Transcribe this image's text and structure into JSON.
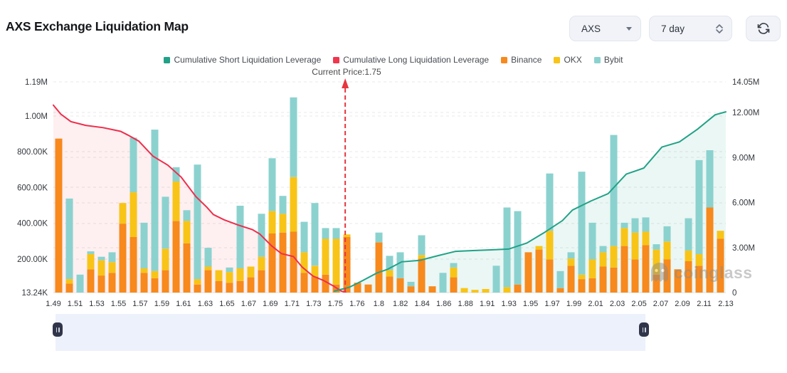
{
  "header": {
    "title": "AXS Exchange Liquidation Map",
    "coin_select": {
      "value": "AXS"
    },
    "range_select": {
      "value": "7 day"
    }
  },
  "icons": {
    "coin_select": "chevron-down-icon",
    "range_select": "spinner-chevrons-icon",
    "refresh": "refresh-icon",
    "slider_handles": "pause-icon",
    "watermark": "ghost-logo-icon"
  },
  "legend": [
    {
      "label": "Cumulative Short Liquidation Leverage",
      "color": "#21A287"
    },
    {
      "label": "Cumulative Long Liquidation Leverage",
      "color": "#F0374E"
    },
    {
      "label": "Binance",
      "color": "#F7891D"
    },
    {
      "label": "OKX",
      "color": "#F8C417"
    },
    {
      "label": "Bybit",
      "color": "#8BD2CF"
    }
  ],
  "watermark": {
    "text": "coinglass"
  },
  "chart_data": {
    "type": "bar",
    "title": "AXS Exchange Liquidation Map",
    "x_labels": [
      "1.49",
      "1.51",
      "1.53",
      "1.55",
      "1.57",
      "1.59",
      "1.61",
      "1.63",
      "1.65",
      "1.67",
      "1.69",
      "1.71",
      "1.73",
      "1.75",
      "1.76",
      "1.8",
      "1.82",
      "1.84",
      "1.86",
      "1.88",
      "1.91",
      "1.93",
      "1.95",
      "1.97",
      "1.99",
      "2.01",
      "2.03",
      "2.05",
      "2.07",
      "2.09",
      "2.11",
      "2.13"
    ],
    "left_axis": {
      "ticks": [
        "13.24K",
        "200.00K",
        "400.00K",
        "600.00K",
        "800.00K",
        "1.00M",
        "1.19M"
      ],
      "tick_values_k": [
        13.24,
        200,
        400,
        600,
        800,
        1000,
        1190
      ],
      "min_k": 13.24,
      "max_k": 1190
    },
    "right_axis": {
      "ticks": [
        "0",
        "3.00M",
        "6.00M",
        "9.00M",
        "12.00M",
        "14.05M"
      ],
      "tick_values_m": [
        0,
        3,
        6,
        9,
        12,
        14.05
      ],
      "min_m": 0,
      "max_m": 14.05
    },
    "grid": "dashed",
    "bars": {
      "unit": "K",
      "series_names": [
        "Binance",
        "OKX",
        "Bybit"
      ],
      "colors": {
        "Binance": "#F7891D",
        "OKX": "#F8C417",
        "Bybit": "#8BD2CF"
      },
      "values": [
        [
          860,
          0,
          0
        ],
        [
          50,
          25,
          450
        ],
        [
          0,
          0,
          100
        ],
        [
          130,
          85,
          15
        ],
        [
          95,
          85,
          20
        ],
        [
          110,
          60,
          55
        ],
        [
          385,
          115,
          0
        ],
        [
          310,
          250,
          305
        ],
        [
          110,
          25,
          255
        ],
        [
          80,
          40,
          790
        ],
        [
          125,
          120,
          290
        ],
        [
          400,
          220,
          80
        ],
        [
          275,
          125,
          60
        ],
        [
          45,
          30,
          640
        ],
        [
          125,
          20,
          105
        ],
        [
          65,
          60,
          0
        ],
        [
          55,
          60,
          25
        ],
        [
          65,
          70,
          350
        ],
        [
          85,
          60,
          0
        ],
        [
          125,
          75,
          240
        ],
        [
          330,
          125,
          295
        ],
        [
          335,
          105,
          100
        ],
        [
          340,
          305,
          445
        ],
        [
          110,
          115,
          170
        ],
        [
          90,
          60,
          350
        ],
        [
          100,
          200,
          60
        ],
        [
          45,
          255,
          60
        ],
        [
          310,
          15,
          0
        ],
        [
          55,
          0,
          0
        ],
        [
          45,
          0,
          0
        ],
        [
          280,
          0,
          55
        ],
        [
          90,
          35,
          80
        ],
        [
          80,
          0,
          145
        ],
        [
          35,
          0,
          25
        ],
        [
          190,
          20,
          110
        ],
        [
          35,
          0,
          0
        ],
        [
          0,
          0,
          110
        ],
        [
          85,
          55,
          25
        ],
        [
          0,
          25,
          0
        ],
        [
          0,
          15,
          0
        ],
        [
          0,
          20,
          0
        ],
        [
          0,
          0,
          150
        ],
        [
          0,
          30,
          445
        ],
        [
          45,
          0,
          410
        ],
        [
          225,
          0,
          0
        ],
        [
          240,
          20,
          0
        ],
        [
          185,
          160,
          320
        ],
        [
          25,
          0,
          95
        ],
        [
          150,
          40,
          35
        ],
        [
          75,
          25,
          575
        ],
        [
          80,
          105,
          205
        ],
        [
          145,
          80,
          35
        ],
        [
          140,
          120,
          620
        ],
        [
          260,
          100,
          30
        ],
        [
          185,
          150,
          80
        ],
        [
          265,
          75,
          80
        ],
        [
          100,
          140,
          30
        ],
        [
          185,
          100,
          85
        ],
        [
          130,
          0,
          0
        ],
        [
          175,
          60,
          180
        ],
        [
          150,
          65,
          525
        ],
        [
          475,
          0,
          320
        ],
        [
          300,
          45,
          0
        ]
      ]
    },
    "lines": [
      {
        "name": "Cumulative Long Liquidation Leverage",
        "unit": "M",
        "color": "#EE2E4C",
        "fill": "rgba(238,46,76,0.08)",
        "points": [
          [
            0.0,
            12.5
          ],
          [
            0.011,
            11.9
          ],
          [
            0.026,
            11.4
          ],
          [
            0.048,
            11.15
          ],
          [
            0.074,
            11.0
          ],
          [
            0.1,
            10.75
          ],
          [
            0.111,
            10.5
          ],
          [
            0.127,
            10.1
          ],
          [
            0.148,
            9.1
          ],
          [
            0.17,
            8.5
          ],
          [
            0.19,
            7.7
          ],
          [
            0.212,
            6.4
          ],
          [
            0.228,
            5.7
          ],
          [
            0.238,
            5.2
          ],
          [
            0.254,
            4.85
          ],
          [
            0.275,
            4.5
          ],
          [
            0.296,
            4.2
          ],
          [
            0.307,
            3.9
          ],
          [
            0.325,
            3.1
          ],
          [
            0.339,
            2.6
          ],
          [
            0.357,
            2.4
          ],
          [
            0.37,
            1.7
          ],
          [
            0.386,
            1.1
          ],
          [
            0.402,
            0.8
          ],
          [
            0.416,
            0.45
          ],
          [
            0.428,
            0.1
          ],
          [
            0.435,
            0.0
          ]
        ]
      },
      {
        "name": "Cumulative Short Liquidation Leverage",
        "unit": "M",
        "color": "#21A287",
        "fill": "rgba(33,162,135,0.09)",
        "points": [
          [
            0.418,
            0.1
          ],
          [
            0.44,
            0.35
          ],
          [
            0.46,
            0.8
          ],
          [
            0.481,
            1.3
          ],
          [
            0.497,
            1.55
          ],
          [
            0.518,
            2.05
          ],
          [
            0.545,
            2.15
          ],
          [
            0.571,
            2.45
          ],
          [
            0.598,
            2.75
          ],
          [
            0.624,
            2.8
          ],
          [
            0.651,
            2.85
          ],
          [
            0.677,
            2.9
          ],
          [
            0.704,
            3.3
          ],
          [
            0.73,
            4.0
          ],
          [
            0.757,
            4.8
          ],
          [
            0.772,
            5.5
          ],
          [
            0.799,
            6.1
          ],
          [
            0.825,
            6.6
          ],
          [
            0.852,
            7.9
          ],
          [
            0.878,
            8.3
          ],
          [
            0.905,
            9.7
          ],
          [
            0.931,
            10.05
          ],
          [
            0.958,
            10.9
          ],
          [
            0.984,
            11.85
          ],
          [
            1.0,
            12.05
          ]
        ]
      }
    ],
    "current_price": {
      "label": "Current Price:1.75",
      "value": 1.75,
      "x_fraction": 0.434,
      "line_color": "#E8353E"
    }
  }
}
